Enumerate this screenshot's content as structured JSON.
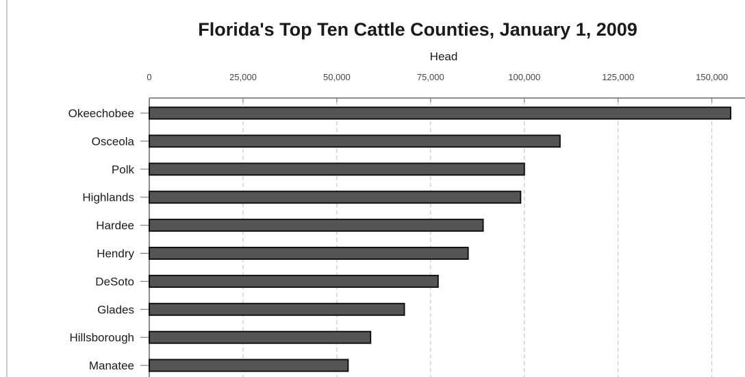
{
  "chart_data": {
    "type": "bar",
    "orientation": "horizontal",
    "title": "Florida's Top Ten Cattle Counties, January 1, 2009",
    "xlabel": "Head",
    "ylabel": "",
    "xlim": [
      0,
      157000
    ],
    "x_ticks": [
      0,
      25000,
      50000,
      75000,
      100000,
      125000,
      150000
    ],
    "x_tick_labels": [
      "0",
      "25,000",
      "50,000",
      "75,000",
      "100,000",
      "125,000",
      "150,000"
    ],
    "x_axis_position": "top",
    "grid": "vertical dashed",
    "legend": "none",
    "categories": [
      "Okeechobee",
      "Osceola",
      "Polk",
      "Highlands",
      "Hardee",
      "Hendry",
      "DeSoto",
      "Glades",
      "Hillsborough",
      "Manatee"
    ],
    "values": [
      155000,
      109500,
      100000,
      99000,
      89000,
      85000,
      77000,
      68000,
      59000,
      53000
    ],
    "colors": {
      "bar_fill": "#555555",
      "bar_stroke": "#111111",
      "grid": "#bdbdbd",
      "axis": "#666666"
    }
  }
}
